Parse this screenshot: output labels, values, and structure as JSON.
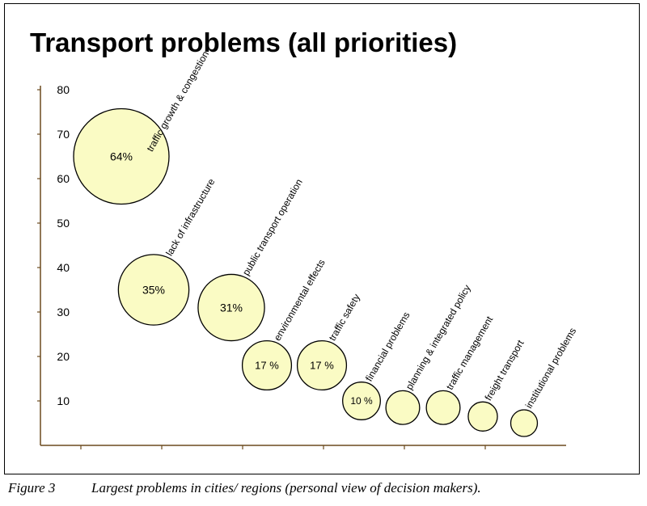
{
  "title": "Transport problems (all priorities)",
  "caption": {
    "figure": "Figure 3",
    "text": "Largest problems in cities/ regions (personal view of decision makers)."
  },
  "colors": {
    "bubble_fill": "#fafbc4",
    "bubble_stroke": "#000000",
    "axis": "#6b4a1e"
  },
  "chart_data": {
    "type": "bubble",
    "title": "Transport problems (all priorities)",
    "ylim": [
      0,
      80
    ],
    "y_ticks": [
      10,
      20,
      30,
      40,
      50,
      60,
      70,
      80
    ],
    "grid": false,
    "legend": "none",
    "points": [
      {
        "label": "traffic growth & congestion",
        "y": 65,
        "size": 64,
        "value_label": "64%"
      },
      {
        "label": "lack of infrastructure",
        "y": 35,
        "size": 35,
        "value_label": "35%"
      },
      {
        "label": "public transport operation",
        "y": 31,
        "size": 31,
        "value_label": "31%"
      },
      {
        "label": "environmental effects",
        "y": 18,
        "size": 17,
        "value_label": "17 %"
      },
      {
        "label": "traffic safety",
        "y": 18,
        "size": 17,
        "value_label": "17 %"
      },
      {
        "label": "financial problems",
        "y": 10,
        "size": 10,
        "value_label": "10 %"
      },
      {
        "label": "planning & integrated policy",
        "y": 8.5,
        "size": 8,
        "value_label": ""
      },
      {
        "label": "traffic management",
        "y": 8.5,
        "size": 8,
        "value_label": ""
      },
      {
        "label": "freight transport",
        "y": 6.5,
        "size": 6,
        "value_label": ""
      },
      {
        "label": "institutional problems",
        "y": 5,
        "size": 5,
        "value_label": ""
      }
    ]
  }
}
